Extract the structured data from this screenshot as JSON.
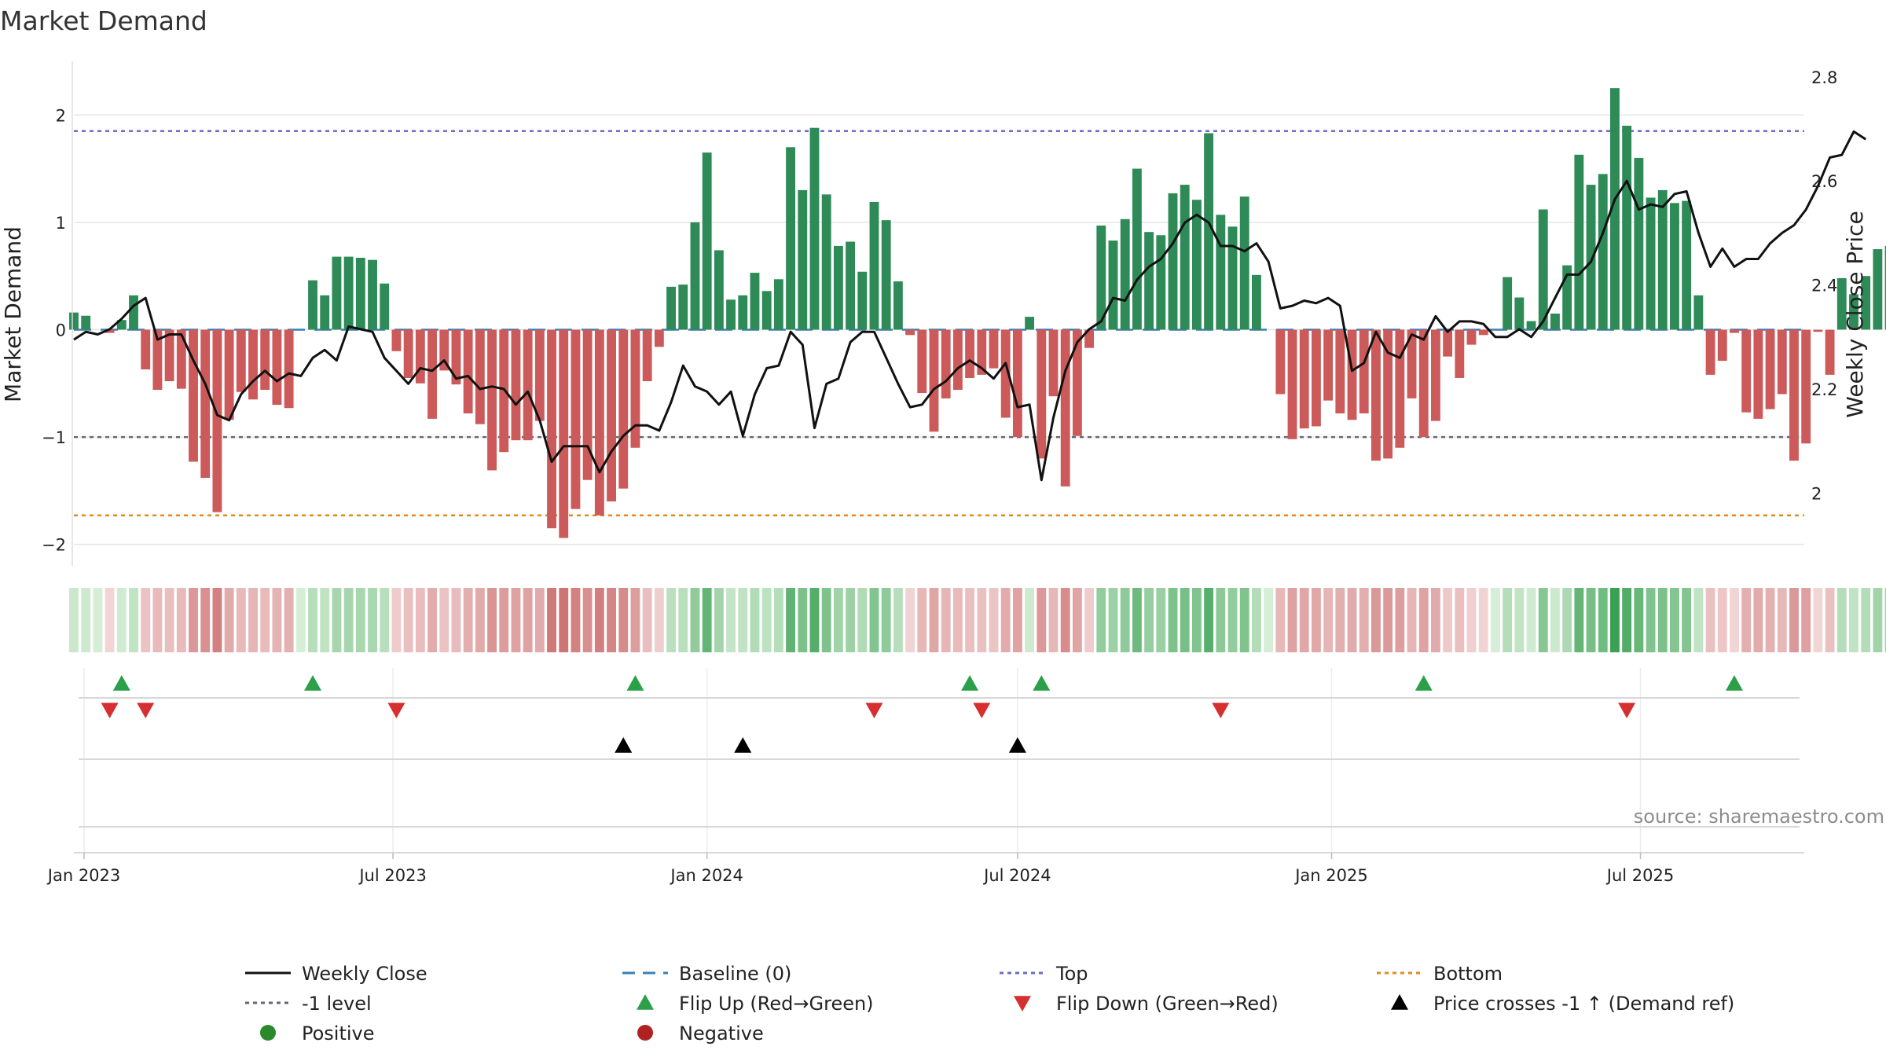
{
  "chart_data": {
    "type": "bar",
    "title": "Market Demand",
    "ylabel": "Market Demand",
    "y2label": "Weekly Close Price",
    "source": "source: sharemaestro.com",
    "ylim": [
      -2.2,
      2.5
    ],
    "y2lim": [
      1.86,
      2.83
    ],
    "yticks": [
      -2,
      -1,
      0,
      1,
      2
    ],
    "yticks_labels": [
      "−2",
      "−1",
      "0",
      "1",
      "2"
    ],
    "y2ticks": [
      2.0,
      2.2,
      2.4,
      2.6,
      2.8
    ],
    "y2ticks_labels": [
      "2",
      "2.2",
      "2.4",
      "2.6",
      "2.8"
    ],
    "x_start": "2022-12-26",
    "x_end": "2025-10-05",
    "xticks": [
      {
        "date": "2023-01-01",
        "label": "Jan 2023"
      },
      {
        "date": "2023-07-01",
        "label": "Jul 2023"
      },
      {
        "date": "2024-01-01",
        "label": "Jan 2024"
      },
      {
        "date": "2024-07-01",
        "label": "Jul 2024"
      },
      {
        "date": "2025-01-01",
        "label": "Jan 2025"
      },
      {
        "date": "2025-07-01",
        "label": "Jul 2025"
      }
    ],
    "first_week": "2022-12-26",
    "top_level": 1.85,
    "minus1_level": -1.0,
    "bottom_level": -1.73,
    "demand": [
      0.16,
      0.13,
      0.0,
      -0.03,
      0.09,
      0.32,
      -0.37,
      -0.56,
      -0.48,
      -0.55,
      -1.23,
      -1.38,
      -1.7,
      -0.84,
      -0.58,
      -0.65,
      -0.56,
      -0.7,
      -0.73,
      0.0,
      0.46,
      0.32,
      0.68,
      0.68,
      0.67,
      0.65,
      0.43,
      -0.2,
      -0.45,
      -0.5,
      -0.83,
      -0.38,
      -0.51,
      -0.78,
      -0.88,
      -1.31,
      -1.14,
      -1.03,
      -1.03,
      -0.85,
      -1.85,
      -1.94,
      -1.67,
      -1.4,
      -1.73,
      -1.6,
      -1.48,
      -1.1,
      -0.48,
      -0.16,
      0.4,
      0.42,
      1.0,
      1.65,
      0.74,
      0.28,
      0.32,
      0.53,
      0.36,
      0.47,
      1.7,
      1.3,
      1.88,
      1.26,
      0.78,
      0.82,
      0.54,
      1.19,
      1.02,
      0.45,
      -0.05,
      -0.59,
      -0.95,
      -0.64,
      -0.56,
      -0.45,
      -0.42,
      -0.36,
      -0.82,
      -1.0,
      0.12,
      -1.2,
      -0.62,
      -1.46,
      -0.99,
      -0.17,
      0.97,
      0.83,
      1.03,
      1.5,
      0.91,
      0.88,
      1.27,
      1.35,
      1.21,
      1.83,
      1.07,
      0.96,
      1.24,
      0.51,
      0.0,
      -0.6,
      -1.02,
      -0.92,
      -0.9,
      -0.66,
      -0.78,
      -0.84,
      -0.78,
      -1.22,
      -1.2,
      -1.1,
      -0.64,
      -1.0,
      -0.85,
      -0.25,
      -0.45,
      -0.14,
      -0.05,
      0.0,
      0.49,
      0.3,
      0.08,
      1.12,
      0.15,
      0.6,
      1.63,
      1.35,
      1.45,
      2.25,
      1.9,
      1.6,
      1.23,
      1.3,
      1.18,
      1.2,
      0.32,
      -0.42,
      -0.29,
      -0.03,
      -0.77,
      -0.83,
      -0.74,
      -0.6,
      -1.22,
      -1.06,
      -0.02,
      -0.42,
      0.48,
      0.33,
      0.5,
      0.75,
      0.78
    ],
    "weekly_close": [
      2.295,
      2.31,
      2.305,
      2.315,
      2.335,
      2.36,
      2.375,
      2.295,
      2.305,
      2.305,
      2.255,
      2.21,
      2.15,
      2.14,
      2.19,
      2.215,
      2.235,
      2.215,
      2.23,
      2.225,
      2.26,
      2.275,
      2.255,
      2.32,
      2.315,
      2.31,
      2.26,
      2.235,
      2.21,
      2.24,
      2.235,
      2.255,
      2.22,
      2.225,
      2.2,
      2.205,
      2.2,
      2.17,
      2.195,
      2.14,
      2.06,
      2.09,
      2.09,
      2.09,
      2.04,
      2.08,
      2.11,
      2.13,
      2.13,
      2.12,
      2.175,
      2.245,
      2.205,
      2.195,
      2.17,
      2.195,
      2.11,
      2.19,
      2.24,
      2.245,
      2.31,
      2.285,
      2.125,
      2.21,
      2.22,
      2.29,
      2.31,
      2.31,
      2.26,
      2.21,
      2.165,
      2.17,
      2.2,
      2.215,
      2.24,
      2.255,
      2.24,
      2.22,
      2.25,
      2.165,
      2.17,
      2.025,
      2.145,
      2.235,
      2.29,
      2.315,
      2.33,
      2.375,
      2.37,
      2.41,
      2.435,
      2.45,
      2.48,
      2.52,
      2.535,
      2.52,
      2.475,
      2.475,
      2.465,
      2.48,
      2.445,
      2.355,
      2.36,
      2.37,
      2.365,
      2.375,
      2.36,
      2.235,
      2.25,
      2.31,
      2.27,
      2.26,
      2.305,
      2.295,
      2.34,
      2.31,
      2.33,
      2.33,
      2.325,
      2.3,
      2.3,
      2.315,
      2.3,
      2.33,
      2.375,
      2.42,
      2.42,
      2.445,
      2.5,
      2.565,
      2.6,
      2.545,
      2.555,
      2.55,
      2.575,
      2.58,
      2.5,
      2.435,
      2.47,
      2.435,
      2.45,
      2.45,
      2.48,
      2.5,
      2.515,
      2.545,
      2.59,
      2.645,
      2.65,
      2.695,
      2.68
    ],
    "flip_up_weeks": [
      4,
      20,
      47,
      75,
      81,
      113,
      139
    ],
    "flip_down_weeks": [
      3,
      6,
      27,
      67,
      76,
      96,
      130
    ],
    "price_cross_weeks": [
      46,
      56,
      79
    ],
    "legend": [
      {
        "label": "Weekly Close",
        "marker": "line",
        "color": "#111111"
      },
      {
        "label": "Baseline (0)",
        "marker": "dash",
        "color": "#3a7fb8"
      },
      {
        "label": "Top",
        "marker": "dot",
        "color": "#6b6bc9"
      },
      {
        "label": "Bottom",
        "marker": "dot",
        "color": "#e08a20"
      },
      {
        "label": "-1 level",
        "marker": "dot",
        "color": "#666677"
      },
      {
        "label": "Flip Up (Red→Green)",
        "marker": "triangle-up",
        "color": "#2ca048"
      },
      {
        "label": "Flip Down (Green→Red)",
        "marker": "triangle-down",
        "color": "#d62f2f"
      },
      {
        "label": "Price crosses -1 ↑ (Demand ref)",
        "marker": "triangle-up",
        "color": "#000000"
      },
      {
        "label": "Positive",
        "marker": "circle",
        "color": "#2a8a2a"
      },
      {
        "label": "Negative",
        "marker": "circle",
        "color": "#b02222"
      }
    ]
  },
  "colors": {
    "positive_bar": "#2e8a57",
    "negative_bar": "#cc5a5a",
    "line": "#111111",
    "baseline": "#3a7fb8",
    "top": "#6b6bc9",
    "bottom": "#e08a20",
    "minus1": "#666677",
    "flip_up": "#2ca048",
    "flip_down": "#d62f2f",
    "cross": "#000000"
  }
}
